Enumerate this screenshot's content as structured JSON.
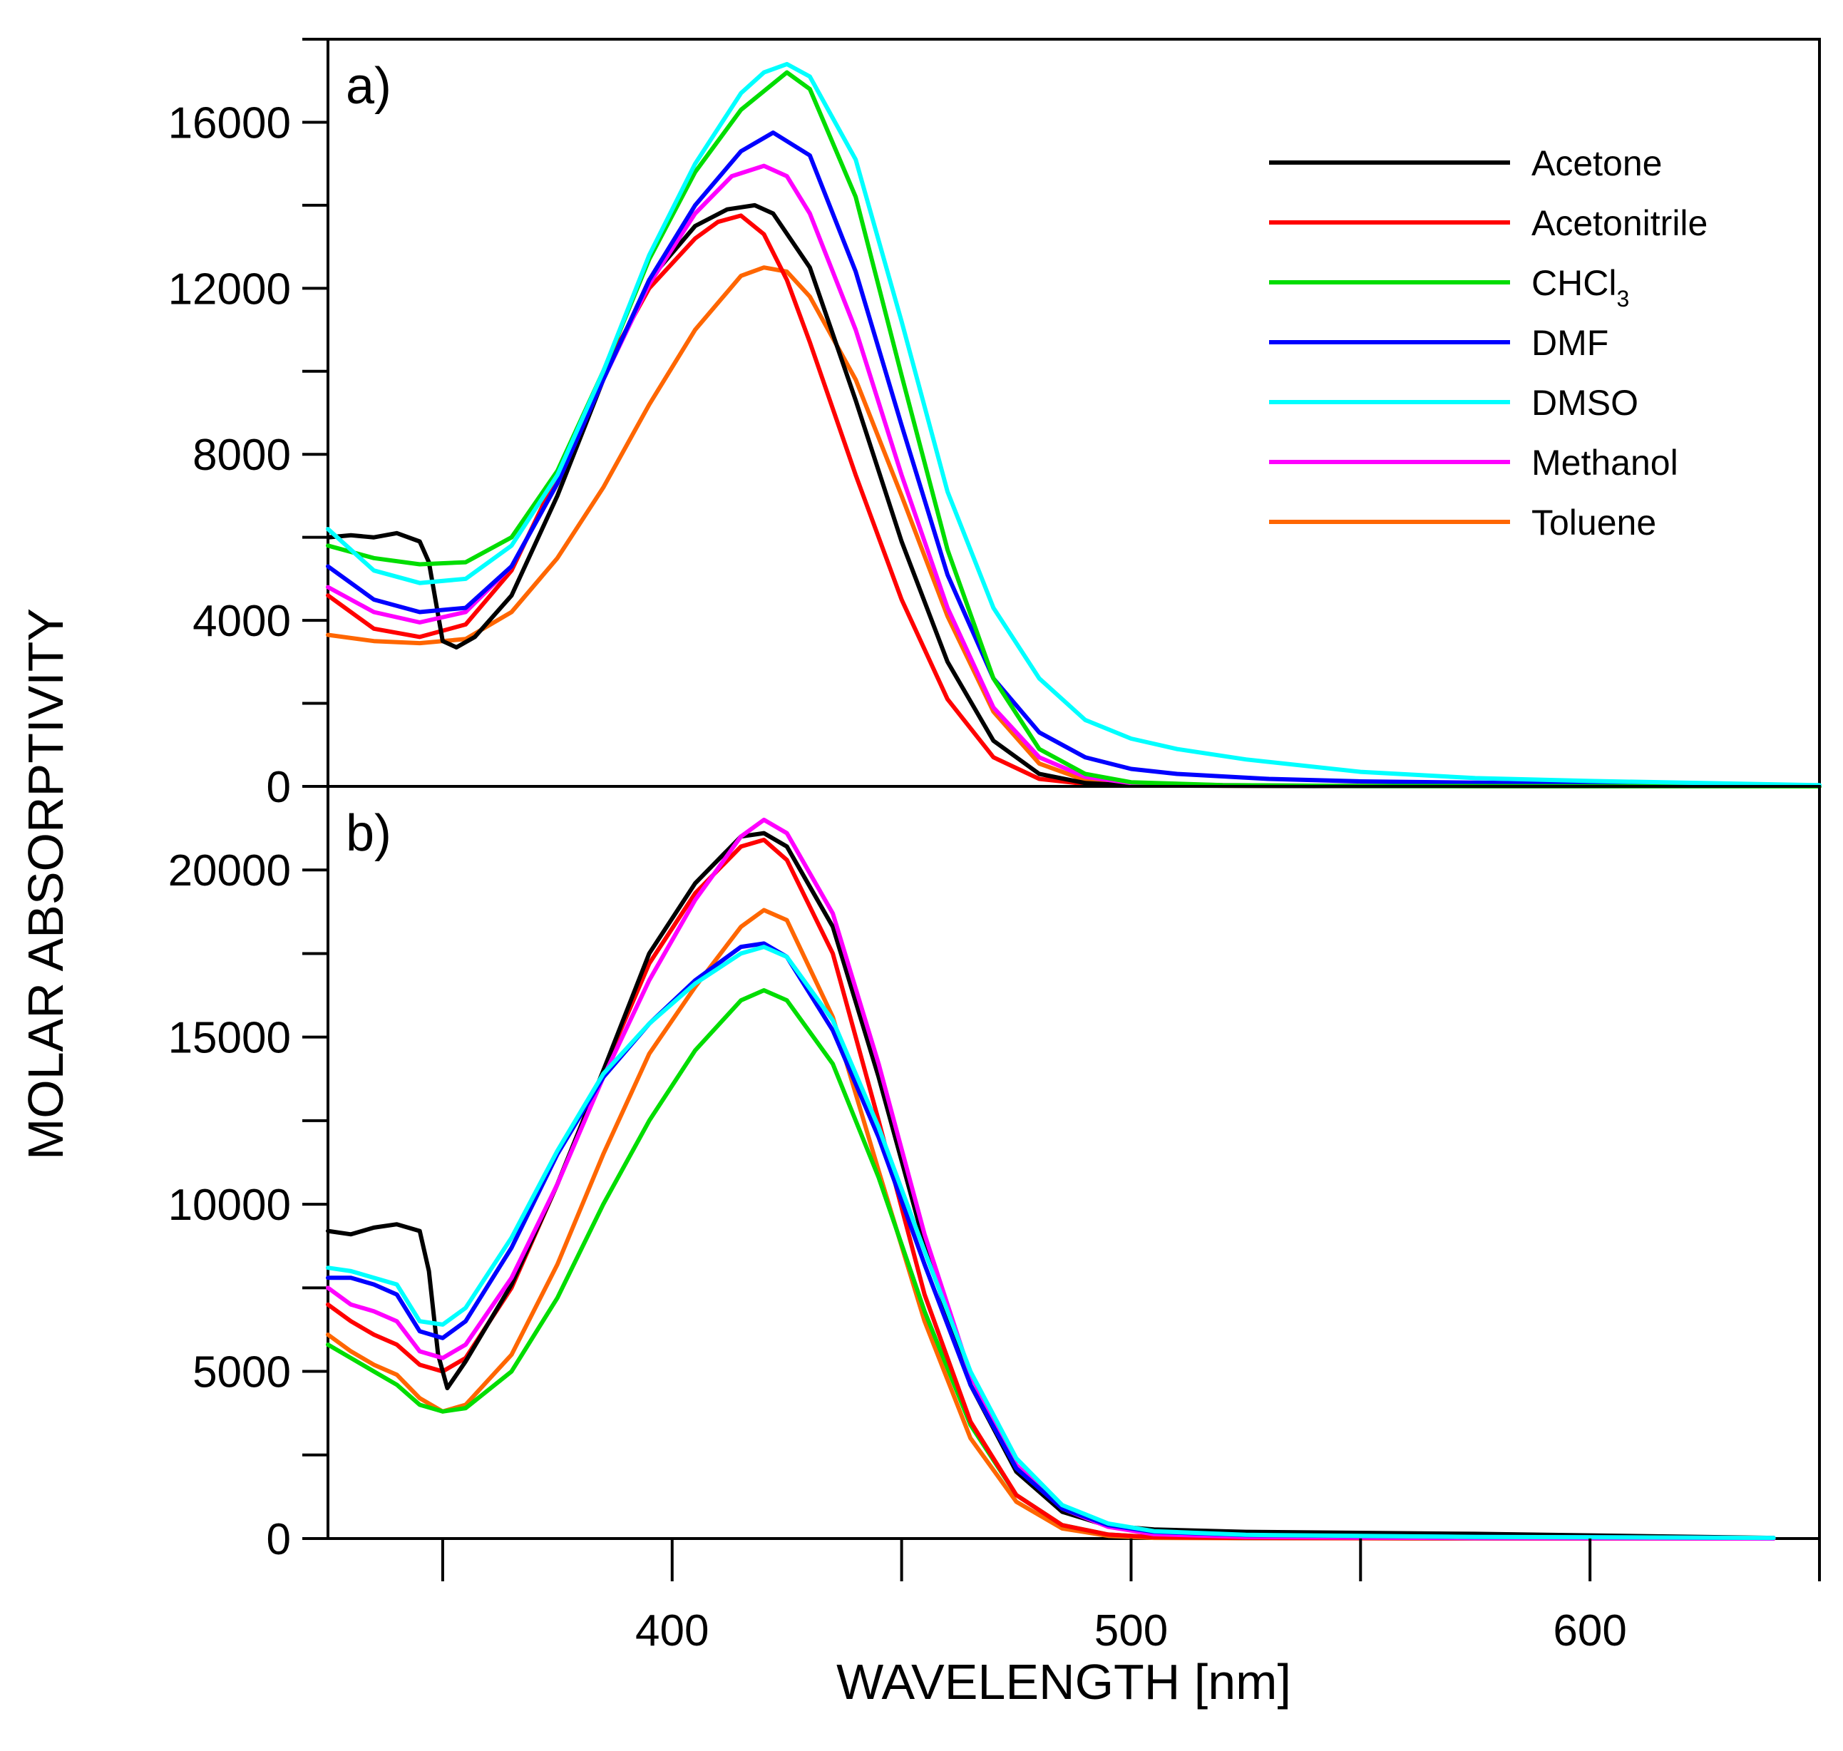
{
  "chart_data": [
    {
      "id": "a",
      "panel_label": "a)",
      "type": "line",
      "xlabel": "WAVELENGTH [nm]",
      "ylabel": "MOLAR ABSORPTIVITY",
      "xlim": [
        325,
        650
      ],
      "ylim": [
        0,
        18000
      ],
      "yticks": [
        {
          "value": 0,
          "label": "0"
        },
        {
          "value": 4000,
          "label": "4000"
        },
        {
          "value": 8000,
          "label": "8000"
        },
        {
          "value": 12000,
          "label": "12000"
        },
        {
          "value": 16000,
          "label": "16000"
        }
      ],
      "yminor": [
        2000,
        6000,
        10000,
        14000,
        18000
      ],
      "legend": {
        "position": "top-right",
        "entries": [
          {
            "base": "Acetone",
            "sub": "",
            "series": "Acetone"
          },
          {
            "base": "Acetonitrile",
            "sub": "",
            "series": "Acetonitrile"
          },
          {
            "base": "CHCl",
            "sub": "3",
            "series": "CHCl3"
          },
          {
            "base": "DMF",
            "sub": "",
            "series": "DMF"
          },
          {
            "base": "DMSO",
            "sub": "",
            "series": "DMSO"
          },
          {
            "base": "Methanol",
            "sub": "",
            "series": "Methanol"
          },
          {
            "base": "Toluene",
            "sub": "",
            "series": "Toluene"
          }
        ]
      },
      "series": [
        {
          "name": "Toluene",
          "color": "#ff6600",
          "x": [
            325,
            335,
            345,
            355,
            365,
            375,
            385,
            395,
            405,
            415,
            420,
            425,
            430,
            440,
            450,
            460,
            470,
            480,
            490,
            500,
            520,
            550,
            600,
            650
          ],
          "y": [
            3650,
            3500,
            3450,
            3550,
            4200,
            5500,
            7200,
            9200,
            11000,
            12300,
            12500,
            12400,
            11800,
            9800,
            7000,
            4100,
            1800,
            550,
            150,
            50,
            15,
            10,
            5,
            0
          ]
        },
        {
          "name": "Acetonitrile",
          "color": "#ff0000",
          "x": [
            325,
            335,
            345,
            355,
            365,
            375,
            385,
            395,
            405,
            410,
            415,
            420,
            425,
            430,
            440,
            450,
            460,
            470,
            480,
            490,
            500,
            550,
            600,
            650
          ],
          "y": [
            4600,
            3800,
            3600,
            3900,
            5200,
            7500,
            10000,
            12000,
            13200,
            13600,
            13750,
            13300,
            12200,
            10700,
            7500,
            4500,
            2100,
            700,
            180,
            60,
            20,
            10,
            5,
            0
          ]
        },
        {
          "name": "Acetone",
          "color": "#000000",
          "x": [
            325,
            330,
            335,
            340,
            345,
            347,
            350,
            353,
            357,
            365,
            375,
            385,
            395,
            405,
            412,
            418,
            422,
            430,
            440,
            450,
            460,
            470,
            480,
            490,
            500,
            550,
            650
          ],
          "y": [
            6000,
            6050,
            6000,
            6100,
            5900,
            5400,
            3500,
            3350,
            3600,
            4600,
            7000,
            9800,
            12200,
            13500,
            13900,
            14000,
            13800,
            12500,
            9300,
            5900,
            3000,
            1100,
            300,
            80,
            20,
            5,
            0
          ]
        },
        {
          "name": "Methanol",
          "color": "#ff00ff",
          "x": [
            325,
            335,
            345,
            355,
            365,
            375,
            385,
            395,
            405,
            413,
            420,
            425,
            430,
            440,
            450,
            460,
            470,
            480,
            490,
            500,
            520,
            550,
            650
          ],
          "y": [
            4800,
            4200,
            3950,
            4200,
            5300,
            7300,
            9800,
            12100,
            13800,
            14700,
            14950,
            14700,
            13800,
            11000,
            7500,
            4300,
            1900,
            700,
            230,
            80,
            30,
            10,
            0
          ]
        },
        {
          "name": "DMF",
          "color": "#0000ff",
          "x": [
            325,
            335,
            345,
            355,
            365,
            375,
            385,
            395,
            405,
            415,
            422,
            430,
            440,
            450,
            460,
            470,
            480,
            490,
            500,
            510,
            530,
            550,
            600,
            650
          ],
          "y": [
            5300,
            4500,
            4200,
            4300,
            5300,
            7300,
            9800,
            12200,
            14000,
            15300,
            15750,
            15200,
            12400,
            8700,
            5100,
            2600,
            1300,
            700,
            420,
            300,
            180,
            120,
            60,
            20
          ]
        },
        {
          "name": "CHCl3",
          "color": "#00dd00",
          "x": [
            325,
            335,
            345,
            355,
            365,
            375,
            385,
            395,
            405,
            415,
            425,
            430,
            440,
            450,
            460,
            470,
            480,
            490,
            500,
            520,
            550,
            650
          ],
          "y": [
            5800,
            5500,
            5350,
            5400,
            6000,
            7600,
            10000,
            12700,
            14800,
            16300,
            17200,
            16800,
            14200,
            9900,
            5700,
            2600,
            900,
            300,
            100,
            30,
            10,
            0
          ]
        },
        {
          "name": "DMSO",
          "color": "#00ffff",
          "x": [
            325,
            335,
            345,
            355,
            365,
            375,
            385,
            395,
            405,
            415,
            420,
            425,
            430,
            440,
            450,
            460,
            470,
            480,
            490,
            500,
            510,
            525,
            550,
            575,
            600,
            650
          ],
          "y": [
            6200,
            5200,
            4900,
            5000,
            5800,
            7500,
            10000,
            12800,
            15000,
            16700,
            17200,
            17400,
            17100,
            15100,
            11200,
            7100,
            4300,
            2600,
            1600,
            1150,
            900,
            650,
            350,
            200,
            130,
            30
          ]
        }
      ]
    },
    {
      "id": "b",
      "panel_label": "b)",
      "type": "line",
      "xlabel": "WAVELENGTH [nm]",
      "ylabel": "MOLAR ABSORPTIVITY",
      "xlim": [
        325,
        650
      ],
      "ylim": [
        0,
        22500
      ],
      "yticks": [
        {
          "value": 0,
          "label": "0"
        },
        {
          "value": 5000,
          "label": "5000"
        },
        {
          "value": 10000,
          "label": "10000"
        },
        {
          "value": 15000,
          "label": "15000"
        },
        {
          "value": 20000,
          "label": "20000"
        }
      ],
      "yminor": [
        2500,
        7500,
        12500,
        17500,
        22500
      ],
      "series": [
        {
          "name": "Toluene",
          "color": "#ff6600",
          "x": [
            325,
            330,
            335,
            340,
            345,
            350,
            355,
            365,
            375,
            385,
            395,
            405,
            415,
            420,
            425,
            435,
            445,
            455,
            465,
            475,
            485,
            495,
            505,
            525,
            575,
            640
          ],
          "y": [
            6100,
            5600,
            5200,
            4900,
            4200,
            3800,
            4000,
            5500,
            8200,
            11500,
            14500,
            16500,
            18300,
            18800,
            18500,
            15600,
            11000,
            6500,
            3000,
            1100,
            300,
            80,
            20,
            10,
            5,
            0
          ]
        },
        {
          "name": "CHCl3",
          "color": "#00dd00",
          "x": [
            325,
            330,
            335,
            340,
            345,
            350,
            355,
            365,
            375,
            385,
            395,
            405,
            415,
            420,
            425,
            435,
            445,
            455,
            465,
            475,
            485,
            495,
            505,
            525,
            575,
            640
          ],
          "y": [
            5800,
            5400,
            5000,
            4600,
            4000,
            3800,
            3900,
            5000,
            7200,
            10000,
            12500,
            14600,
            16100,
            16400,
            16100,
            14200,
            10800,
            6800,
            3400,
            1300,
            400,
            120,
            40,
            15,
            5,
            0
          ]
        },
        {
          "name": "Acetonitrile",
          "color": "#ff0000",
          "x": [
            325,
            330,
            335,
            340,
            345,
            350,
            355,
            365,
            375,
            385,
            395,
            405,
            415,
            420,
            425,
            435,
            445,
            455,
            465,
            475,
            485,
            495,
            505,
            525,
            575,
            640
          ],
          "y": [
            7000,
            6500,
            6100,
            5800,
            5200,
            5000,
            5400,
            7500,
            10600,
            14000,
            17200,
            19300,
            20700,
            20900,
            20300,
            17500,
            12500,
            7300,
            3500,
            1300,
            400,
            120,
            40,
            15,
            5,
            0
          ]
        },
        {
          "name": "Acetone",
          "color": "#000000",
          "x": [
            325,
            330,
            335,
            340,
            345,
            347,
            349,
            351,
            355,
            365,
            375,
            385,
            395,
            405,
            415,
            420,
            425,
            435,
            445,
            455,
            465,
            475,
            485,
            495,
            505,
            525,
            575,
            640
          ],
          "y": [
            9200,
            9100,
            9300,
            9400,
            9200,
            8000,
            5500,
            4500,
            5300,
            7600,
            10600,
            14000,
            17500,
            19600,
            21000,
            21100,
            20700,
            18300,
            13800,
            8800,
            4600,
            2000,
            800,
            380,
            270,
            200,
            140,
            20
          ]
        },
        {
          "name": "Methanol",
          "color": "#ff00ff",
          "x": [
            325,
            330,
            335,
            340,
            345,
            350,
            355,
            365,
            375,
            385,
            395,
            405,
            415,
            420,
            425,
            435,
            445,
            455,
            465,
            475,
            485,
            495,
            505,
            525,
            575,
            640
          ],
          "y": [
            7500,
            7000,
            6800,
            6500,
            5600,
            5400,
            5800,
            7800,
            10600,
            13800,
            16700,
            19100,
            21000,
            21500,
            21100,
            18700,
            14200,
            9100,
            4900,
            2200,
            900,
            350,
            130,
            50,
            10,
            0
          ]
        },
        {
          "name": "DMF",
          "color": "#0000ff",
          "x": [
            325,
            330,
            335,
            340,
            345,
            350,
            355,
            365,
            375,
            385,
            395,
            405,
            415,
            420,
            425,
            435,
            445,
            455,
            465,
            475,
            485,
            495,
            505,
            525,
            575,
            640
          ],
          "y": [
            7800,
            7800,
            7600,
            7300,
            6200,
            6000,
            6500,
            8700,
            11500,
            13800,
            15400,
            16700,
            17700,
            17800,
            17400,
            15200,
            12000,
            8200,
            4600,
            2100,
            900,
            400,
            200,
            100,
            50,
            20
          ]
        },
        {
          "name": "DMSO",
          "color": "#00ffff",
          "x": [
            325,
            330,
            335,
            340,
            345,
            350,
            355,
            365,
            375,
            385,
            395,
            405,
            415,
            420,
            425,
            435,
            445,
            455,
            465,
            475,
            485,
            495,
            505,
            525,
            575,
            640
          ],
          "y": [
            8100,
            8000,
            7800,
            7600,
            6500,
            6400,
            6900,
            9000,
            11600,
            13900,
            15400,
            16600,
            17500,
            17700,
            17400,
            15500,
            12300,
            8600,
            5000,
            2400,
            1000,
            450,
            220,
            110,
            50,
            20
          ]
        }
      ]
    }
  ],
  "x_axis": {
    "title": "WAVELENGTH [nm]",
    "ticks": [
      {
        "value": 400,
        "label": "400"
      },
      {
        "value": 500,
        "label": "500"
      },
      {
        "value": 600,
        "label": "600"
      }
    ],
    "minor": [
      350,
      450,
      550,
      650
    ]
  },
  "y_axis_title": "MOLAR ABSORPTIVITY"
}
